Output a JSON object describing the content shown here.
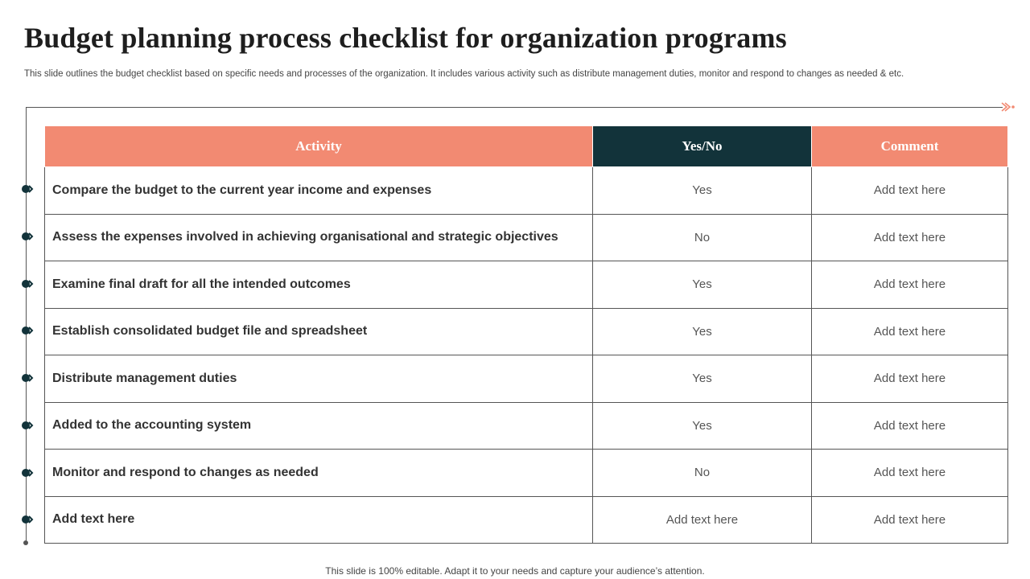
{
  "slide": {
    "title": "Budget planning process checklist for organization programs",
    "subtitle": "This slide outlines the  budget checklist based on specific needs and processes of the organization. It includes various activity such as distribute management duties, monitor and respond to changes as needed & etc.",
    "footer": "This slide is 100% editable. Adapt it to your needs and capture your audience’s attention."
  },
  "colors": {
    "accent": "#f28a72",
    "dark": "#12333a"
  },
  "table": {
    "headers": {
      "activity": "Activity",
      "yesno": "Yes/No",
      "comment": "Comment"
    },
    "rows": [
      {
        "activity": "Compare the budget to the current year income and expenses",
        "yesno": "Yes",
        "comment": "Add text here"
      },
      {
        "activity": "Assess the expenses involved in achieving organisational and strategic objectives",
        "yesno": "No",
        "comment": "Add text here"
      },
      {
        "activity": "Examine final draft for all the intended outcomes",
        "yesno": "Yes",
        "comment": "Add text here"
      },
      {
        "activity": "Establish consolidated budget file and spreadsheet",
        "yesno": "Yes",
        "comment": "Add text here"
      },
      {
        "activity": "Distribute management duties",
        "yesno": "Yes",
        "comment": "Add text here"
      },
      {
        "activity": "Added to the accounting system",
        "yesno": "Yes",
        "comment": "Add text here"
      },
      {
        "activity": "Monitor and respond to changes as needed",
        "yesno": "No",
        "comment": "Add text here"
      },
      {
        "activity": "Add text here",
        "yesno": "Add text here",
        "comment": "Add text here"
      }
    ]
  }
}
